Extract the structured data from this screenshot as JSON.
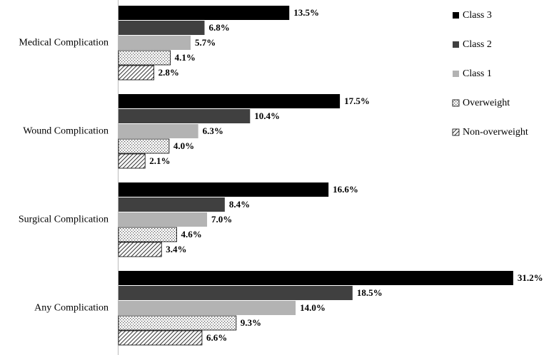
{
  "chart_data": {
    "type": "hbar",
    "categories": [
      "Medical Complication",
      "Wound Complication",
      "Surgical Complication",
      "Any Complication"
    ],
    "series": [
      {
        "name": "Class 3",
        "color": "#000000",
        "values": [
          13.5,
          17.5,
          16.6,
          31.2
        ],
        "value_labels": [
          "13.5%",
          "17.5%",
          "16.6%",
          "31.2%"
        ]
      },
      {
        "name": "Class 2",
        "color": "#404040",
        "values": [
          6.8,
          10.4,
          8.4,
          18.5
        ],
        "value_labels": [
          "6.8%",
          "10.4%",
          "8.4%",
          "18.5%"
        ]
      },
      {
        "name": "Class 1",
        "color": "#b3b3b3",
        "values": [
          5.7,
          6.3,
          7.0,
          14.0
        ],
        "value_labels": [
          "5.7%",
          "6.3%",
          "7.0%",
          "14.0%"
        ]
      },
      {
        "name": "Overweight",
        "color": "#ffffff",
        "pattern": "dots",
        "values": [
          4.1,
          4.0,
          4.6,
          9.3
        ],
        "value_labels": [
          "4.1%",
          "4.0%",
          "4.6%",
          "9.3%"
        ]
      },
      {
        "name": "Non-overweight",
        "color": "#ffffff",
        "pattern": "hatch",
        "values": [
          2.8,
          2.1,
          3.4,
          6.6
        ],
        "value_labels": [
          "2.8%",
          "2.1%",
          "3.4%",
          "6.6%"
        ]
      }
    ],
    "legend": "top-right"
  }
}
